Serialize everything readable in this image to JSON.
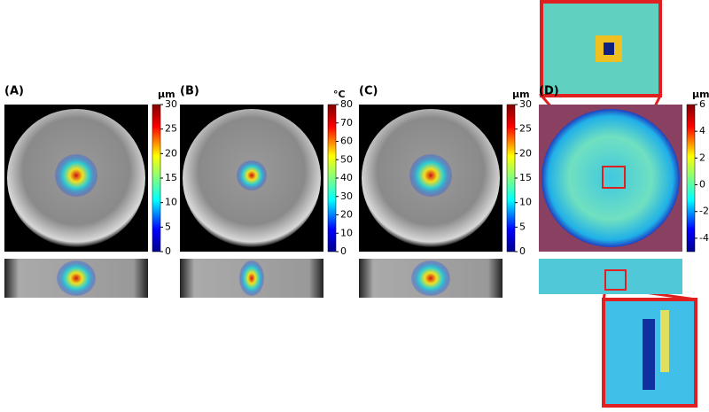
{
  "panels": [
    {
      "label": "(A)",
      "unit": "µm",
      "colorbar": {
        "range": [
          0,
          30
        ],
        "ticks": [
          0,
          5,
          10,
          15,
          20,
          25,
          30
        ]
      }
    },
    {
      "label": "(B)",
      "unit": "°C",
      "colorbar": {
        "range": [
          0,
          80
        ],
        "ticks": [
          0,
          10,
          20,
          30,
          40,
          50,
          60,
          70,
          80
        ]
      }
    },
    {
      "label": "(C)",
      "unit": "µm",
      "colorbar": {
        "range": [
          0,
          30
        ],
        "ticks": [
          0,
          5,
          10,
          15,
          20,
          25,
          30
        ]
      }
    },
    {
      "label": "(D)",
      "unit": "µm",
      "colorbar": {
        "range": [
          -5,
          6
        ],
        "ticks": [
          -4,
          -2,
          0,
          2,
          4,
          6
        ]
      }
    }
  ]
}
